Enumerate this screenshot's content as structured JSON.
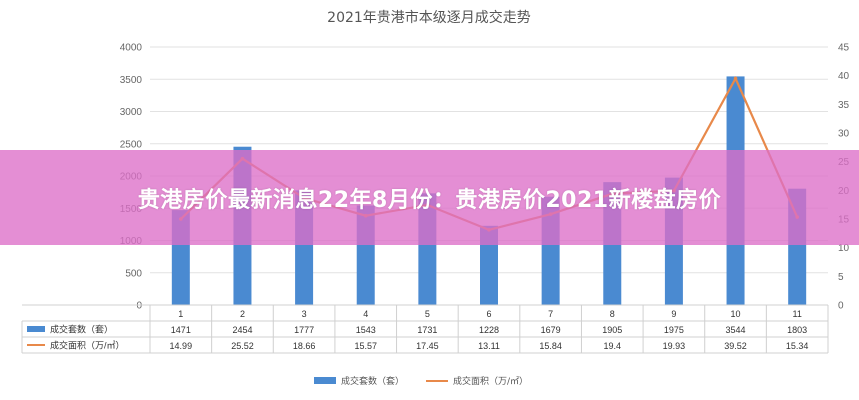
{
  "chart_data": {
    "type": "bar",
    "title": "2021年贵港市本级逐月成交走势",
    "categories": [
      "1",
      "2",
      "3",
      "4",
      "5",
      "6",
      "7",
      "8",
      "9",
      "10",
      "11"
    ],
    "series": [
      {
        "name": "成交套数（套）",
        "kind": "bar",
        "axis": "left",
        "color": "#4a8ad1",
        "values": [
          1471,
          2454,
          1777,
          1543,
          1731,
          1228,
          1679,
          1905,
          1975,
          3544,
          1803
        ],
        "labels": [
          "1471",
          "2454",
          "1777",
          "1543",
          "1731",
          "1228",
          "1679",
          "1905",
          "1975",
          "3544",
          "1803"
        ]
      },
      {
        "name": "成交面积（万/㎡）",
        "kind": "line",
        "axis": "right",
        "color": "#e8894a",
        "values": [
          14.99,
          25.52,
          18.66,
          15.57,
          17.45,
          13.11,
          15.84,
          19.4,
          19.93,
          39.52,
          15.34
        ],
        "labels": [
          "14.99",
          "25.52",
          "18.66",
          "15.57",
          "17.45",
          "13.11",
          "15.84",
          "19.4",
          "19.93",
          "39.52",
          "15.34"
        ]
      }
    ],
    "y_left": {
      "min": 0,
      "max": 4000,
      "ticks": [
        "0",
        "500",
        "1000",
        "1500",
        "2000",
        "2500",
        "3000",
        "3500",
        "4000"
      ]
    },
    "y_right": {
      "min": 0,
      "max": 45,
      "ticks": [
        "0",
        "5",
        "10",
        "15",
        "20",
        "25",
        "30",
        "35",
        "40",
        "45"
      ]
    },
    "grid": true,
    "legend_position": "bottom"
  },
  "legend": {
    "bar_label": "成交套数（套）",
    "line_label": "成交面积（万/㎡）"
  },
  "overlay_banner": "贵港房价最新消息22年8月份：贵港房价2021新楼盘房价"
}
